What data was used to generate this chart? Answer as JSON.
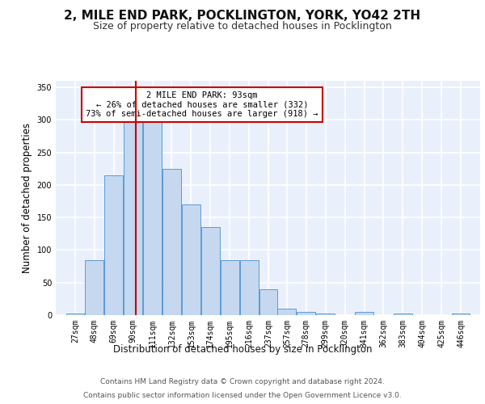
{
  "title": "2, MILE END PARK, POCKLINGTON, YORK, YO42 2TH",
  "subtitle": "Size of property relative to detached houses in Pocklington",
  "xlabel": "Distribution of detached houses by size in Pocklington",
  "ylabel": "Number of detached properties",
  "footer_line1": "Contains HM Land Registry data © Crown copyright and database right 2024.",
  "footer_line2": "Contains public sector information licensed under the Open Government Licence v3.0.",
  "annotation_line1": "2 MILE END PARK: 93sqm",
  "annotation_line2": "← 26% of detached houses are smaller (332)",
  "annotation_line3": "73% of semi-detached houses are larger (918) →",
  "bar_color": "#c5d8f0",
  "bar_edge_color": "#5b9bd5",
  "red_line_x": 93,
  "annotation_box_color": "#ffffff",
  "annotation_box_edge": "#cc0000",
  "categories": [
    27,
    48,
    69,
    90,
    111,
    132,
    153,
    174,
    195,
    216,
    237,
    257,
    278,
    299,
    320,
    341,
    362,
    383,
    404,
    425,
    446
  ],
  "bar_heights": [
    2,
    85,
    215,
    330,
    330,
    225,
    170,
    135,
    85,
    85,
    40,
    10,
    5,
    2,
    0,
    5,
    0,
    2,
    0,
    0,
    2
  ],
  "xlim_min": 6,
  "xlim_max": 467,
  "ylim_min": 0,
  "ylim_max": 360,
  "yticks": [
    0,
    50,
    100,
    150,
    200,
    250,
    300,
    350
  ],
  "bin_width": 21,
  "background_color": "#eaf0fb",
  "grid_color": "#ffffff",
  "title_fontsize": 11,
  "subtitle_fontsize": 9,
  "axis_label_fontsize": 8.5,
  "tick_fontsize": 7,
  "annotation_fontsize": 7.5,
  "footer_fontsize": 6.5
}
